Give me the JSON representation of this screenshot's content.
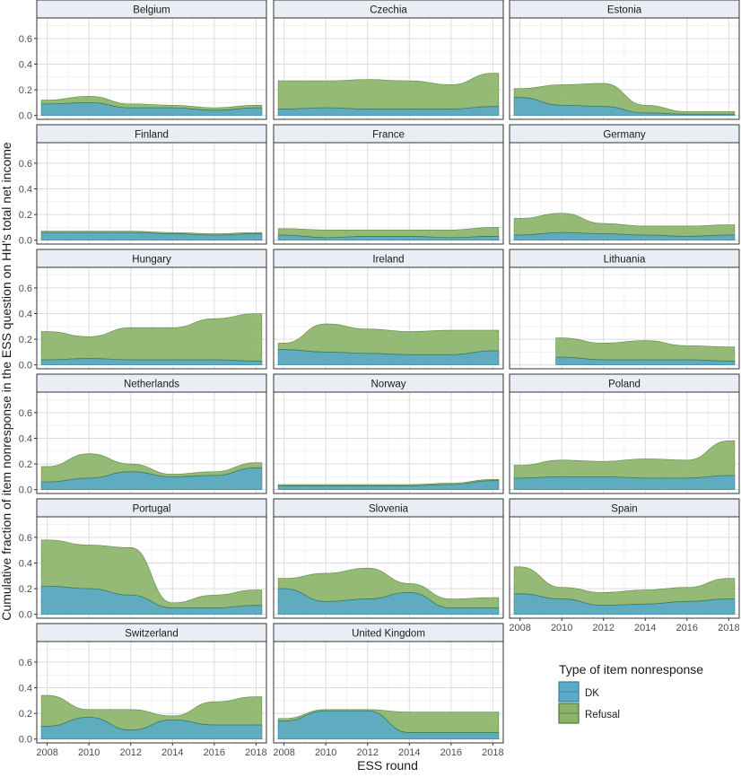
{
  "chart_data": {
    "type": "area",
    "subtype": "stacked-ribbon-facets",
    "xlabel": "ESS round",
    "ylabel": "Cumulative fraction of item nonresponse in the ESS question on HH's total net income",
    "x_ticks": [
      2008,
      2010,
      2012,
      2014,
      2016,
      2018
    ],
    "y_ticks": [
      0.0,
      0.2,
      0.4,
      0.6
    ],
    "y_tick_labels": [
      "0.0",
      "0.2",
      "0.4",
      "0.6"
    ],
    "ylim": [
      -0.03,
      0.76
    ],
    "xlim": [
      2007.5,
      2018.5
    ],
    "legend": {
      "title": "Type of item nonresponse",
      "items": [
        {
          "label": "DK",
          "color": "#5AAAC8",
          "border": "#2E7FA3"
        },
        {
          "label": "Refusal",
          "color": "#8BB46A",
          "border": "#4E7A33"
        }
      ],
      "position": "bottom-right"
    },
    "colors": {
      "dk": "#5AAAC8",
      "refusal": "#8BB46A",
      "strip_bg": "#E8EEF4"
    },
    "x": [
      2008,
      2010,
      2012,
      2014,
      2016,
      2018
    ],
    "panels": [
      {
        "name": "Belgium",
        "dk": [
          0.09,
          0.1,
          0.06,
          0.06,
          0.04,
          0.06
        ],
        "refusal": [
          0.03,
          0.05,
          0.03,
          0.02,
          0.02,
          0.02
        ]
      },
      {
        "name": "Czechia",
        "dk": [
          0.05,
          0.06,
          0.05,
          0.05,
          0.05,
          0.07
        ],
        "refusal": [
          0.22,
          0.21,
          0.23,
          0.22,
          0.19,
          0.26
        ]
      },
      {
        "name": "Estonia",
        "dk": [
          0.14,
          0.08,
          0.07,
          0.02,
          0.01,
          0.01
        ],
        "refusal": [
          0.07,
          0.16,
          0.18,
          0.06,
          0.02,
          0.02
        ]
      },
      {
        "name": "Finland",
        "dk": [
          0.06,
          0.06,
          0.06,
          0.05,
          0.04,
          0.05
        ],
        "refusal": [
          0.01,
          0.01,
          0.01,
          0.01,
          0.01,
          0.01
        ]
      },
      {
        "name": "France",
        "dk": [
          0.04,
          0.02,
          0.03,
          0.03,
          0.02,
          0.03
        ],
        "refusal": [
          0.05,
          0.06,
          0.05,
          0.05,
          0.06,
          0.07
        ]
      },
      {
        "name": "Germany",
        "dk": [
          0.04,
          0.06,
          0.05,
          0.04,
          0.03,
          0.04
        ],
        "refusal": [
          0.13,
          0.15,
          0.08,
          0.07,
          0.08,
          0.08
        ]
      },
      {
        "name": "Hungary",
        "dk": [
          0.04,
          0.05,
          0.04,
          0.04,
          0.04,
          0.03
        ],
        "refusal": [
          0.22,
          0.17,
          0.25,
          0.25,
          0.32,
          0.37
        ]
      },
      {
        "name": "Ireland",
        "dk": [
          0.12,
          0.1,
          0.09,
          0.08,
          0.08,
          0.11
        ],
        "refusal": [
          0.05,
          0.22,
          0.19,
          0.18,
          0.19,
          0.16
        ]
      },
      {
        "name": "Lithuania",
        "x_start": 2010,
        "dk": [
          null,
          0.06,
          0.04,
          0.04,
          0.04,
          0.03
        ],
        "refusal": [
          null,
          0.15,
          0.13,
          0.15,
          0.11,
          0.11
        ]
      },
      {
        "name": "Netherlands",
        "dk": [
          0.06,
          0.09,
          0.14,
          0.1,
          0.11,
          0.17
        ],
        "refusal": [
          0.12,
          0.19,
          0.06,
          0.02,
          0.03,
          0.04
        ]
      },
      {
        "name": "Norway",
        "dk": [
          0.03,
          0.03,
          0.03,
          0.03,
          0.04,
          0.07
        ],
        "refusal": [
          0.01,
          0.01,
          0.01,
          0.01,
          0.01,
          0.01
        ]
      },
      {
        "name": "Poland",
        "dk": [
          0.09,
          0.1,
          0.1,
          0.09,
          0.09,
          0.11
        ],
        "refusal": [
          0.1,
          0.13,
          0.12,
          0.15,
          0.14,
          0.27
        ]
      },
      {
        "name": "Portugal",
        "dk": [
          0.22,
          0.2,
          0.15,
          0.05,
          0.05,
          0.07
        ],
        "refusal": [
          0.36,
          0.34,
          0.37,
          0.04,
          0.1,
          0.12
        ]
      },
      {
        "name": "Slovenia",
        "dk": [
          0.2,
          0.1,
          0.12,
          0.17,
          0.05,
          0.05
        ],
        "refusal": [
          0.08,
          0.22,
          0.24,
          0.07,
          0.07,
          0.08
        ]
      },
      {
        "name": "Spain",
        "dk": [
          0.16,
          0.12,
          0.07,
          0.08,
          0.1,
          0.12
        ],
        "refusal": [
          0.21,
          0.09,
          0.1,
          0.11,
          0.11,
          0.16
        ]
      },
      {
        "name": "Switzerland",
        "dk": [
          0.1,
          0.17,
          0.07,
          0.15,
          0.11,
          0.11
        ],
        "refusal": [
          0.24,
          0.06,
          0.16,
          0.03,
          0.18,
          0.22
        ]
      },
      {
        "name": "United Kingdom",
        "dk": [
          0.14,
          0.22,
          0.22,
          0.05,
          0.05,
          0.05
        ],
        "refusal": [
          0.02,
          0.01,
          0.01,
          0.16,
          0.16,
          0.16
        ]
      }
    ]
  }
}
